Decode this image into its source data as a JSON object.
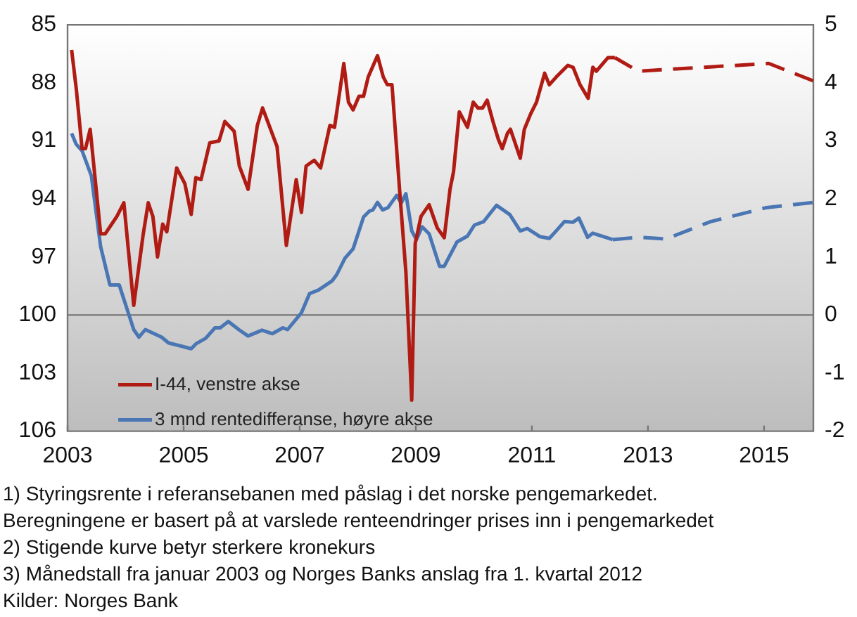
{
  "chart_data": {
    "type": "line",
    "annotations": [
      "1) Styringsrente i referansebanen med påslag i det norske pengemarkedet.",
      "Beregningene er basert på at varslede renteendringer prises inn i pengemarkedet",
      "2) Stigende kurve betyr sterkere kronekurs",
      "3) Månedstall fra januar 2003 og Norges Banks anslag fra 1. kvartal 2012",
      "Kilder: Norges Bank"
    ],
    "xlim": [
      2003,
      2015.85
    ],
    "xticks": [
      2003,
      2005,
      2007,
      2009,
      2011,
      2013,
      2015
    ],
    "ylim": [
      106,
      85
    ],
    "yticks": [
      85,
      88,
      91,
      94,
      97,
      100,
      103,
      106
    ],
    "y2lim": [
      -2,
      5
    ],
    "y2ticks": [
      -2,
      -1,
      0,
      1,
      2,
      3,
      4,
      5
    ],
    "grid": false,
    "legend": "bottom left",
    "marker": "none",
    "ref_lines": [
      {
        "axis": "y2",
        "value": 0,
        "color": "#707070"
      }
    ],
    "series": [
      {
        "name": "I-44, venstre akse",
        "color": "#b01c14",
        "line_style": "solid",
        "x": [
          2003.07,
          2003.15,
          2003.25,
          2003.31,
          2003.39,
          2003.57,
          2003.65,
          2003.85,
          2003.97,
          2004.14,
          2004.3,
          2004.39,
          2004.47,
          2004.55,
          2004.64,
          2004.71,
          2004.88,
          2005.02,
          2005.13,
          2005.21,
          2005.3,
          2005.45,
          2005.61,
          2005.71,
          2005.87,
          2005.96,
          2006.11,
          2006.27,
          2006.36,
          2006.61,
          2006.77,
          2006.94,
          2007.03,
          2007.11,
          2007.25,
          2007.36,
          2007.52,
          2007.6,
          2007.76,
          2007.84,
          2007.92,
          2008.02,
          2008.1,
          2008.18,
          2008.34,
          2008.44,
          2008.51,
          2008.59,
          2008.72,
          2008.83,
          2008.93,
          2008.99,
          2009.09,
          2009.23,
          2009.37,
          2009.49,
          2009.59,
          2009.65,
          2009.75,
          2009.89,
          2009.99,
          2010.07,
          2010.15,
          2010.23,
          2010.33,
          2010.42,
          2010.49,
          2010.58,
          2010.63,
          2010.71,
          2010.8,
          2010.87,
          2010.98,
          2011.08,
          2011.22,
          2011.3,
          2011.42,
          2011.62,
          2011.71,
          2011.83,
          2011.97,
          2012.05,
          2012.11,
          2012.31,
          2012.43
        ],
        "values": [
          86.3,
          88.3,
          91.4,
          91.4,
          90.4,
          95.8,
          95.8,
          94.9,
          94.2,
          99.5,
          95.9,
          94.2,
          94.9,
          97.0,
          95.3,
          95.7,
          92.4,
          93.2,
          94.8,
          92.9,
          93.0,
          91.1,
          91.0,
          90.0,
          90.5,
          92.3,
          93.5,
          90.2,
          89.3,
          91.3,
          96.4,
          93.0,
          94.7,
          92.3,
          92.0,
          92.4,
          90.2,
          90.3,
          87.0,
          89.0,
          89.4,
          88.7,
          88.7,
          87.7,
          86.6,
          87.7,
          88.1,
          88.1,
          93.5,
          97.8,
          104.4,
          96.3,
          94.9,
          94.3,
          95.5,
          96.0,
          93.5,
          92.6,
          89.5,
          90.3,
          89.0,
          89.3,
          89.3,
          88.9,
          90.0,
          90.9,
          91.4,
          90.6,
          90.4,
          91.1,
          91.9,
          90.4,
          89.6,
          89.0,
          87.5,
          88.1,
          87.7,
          87.1,
          87.2,
          88.1,
          88.8,
          87.2,
          87.4,
          86.7,
          86.7
        ]
      },
      {
        "color": "#b01c14",
        "line_style": "dashed",
        "x": [
          2012.43,
          2012.83,
          2015.08,
          2015.85
        ],
        "values": [
          86.7,
          87.4,
          87.0,
          87.9
        ]
      },
      {
        "name": "3 mnd rentedifferanse, høyre akse",
        "color": "#4a76b4",
        "axis": "y2",
        "line_style": "solid",
        "x": [
          2003.07,
          2003.15,
          2003.25,
          2003.41,
          2003.57,
          2003.73,
          2003.89,
          2004.14,
          2004.23,
          2004.34,
          2004.62,
          2004.74,
          2004.98,
          2005.13,
          2005.22,
          2005.38,
          2005.54,
          2005.63,
          2005.77,
          2005.95,
          2006.11,
          2006.35,
          2006.53,
          2006.71,
          2006.79,
          2007.03,
          2007.17,
          2007.32,
          2007.56,
          2007.64,
          2007.78,
          2007.92,
          2008.1,
          2008.2,
          2008.26,
          2008.34,
          2008.43,
          2008.52,
          2008.67,
          2008.75,
          2008.83,
          2008.93,
          2009.01,
          2009.11,
          2009.23,
          2009.41,
          2009.49,
          2009.71,
          2009.89,
          2010.01,
          2010.17,
          2010.39,
          2010.62,
          2010.8,
          2010.92,
          2011.14,
          2011.3,
          2011.41,
          2011.56,
          2011.71,
          2011.81,
          2011.96,
          2012.05,
          2012.39
        ],
        "values": [
          3.13,
          2.94,
          2.83,
          2.4,
          1.18,
          0.52,
          0.52,
          -0.25,
          -0.38,
          -0.25,
          -0.38,
          -0.48,
          -0.54,
          -0.58,
          -0.49,
          -0.4,
          -0.22,
          -0.22,
          -0.11,
          -0.25,
          -0.36,
          -0.26,
          -0.32,
          -0.22,
          -0.25,
          0.04,
          0.37,
          0.43,
          0.59,
          0.7,
          0.98,
          1.14,
          1.69,
          1.79,
          1.81,
          1.94,
          1.81,
          1.85,
          2.06,
          1.93,
          2.09,
          1.45,
          1.3,
          1.52,
          1.4,
          0.84,
          0.84,
          1.26,
          1.36,
          1.55,
          1.61,
          1.89,
          1.73,
          1.45,
          1.49,
          1.35,
          1.32,
          1.44,
          1.61,
          1.6,
          1.67,
          1.34,
          1.41,
          1.3
        ]
      },
      {
        "color": "#4a76b4",
        "axis": "y2",
        "line_style": "dashed",
        "x": [
          2012.39,
          2012.87,
          2013.31,
          2014.08,
          2015.04,
          2015.85
        ],
        "values": [
          1.3,
          1.34,
          1.31,
          1.61,
          1.85,
          1.94
        ]
      }
    ]
  }
}
